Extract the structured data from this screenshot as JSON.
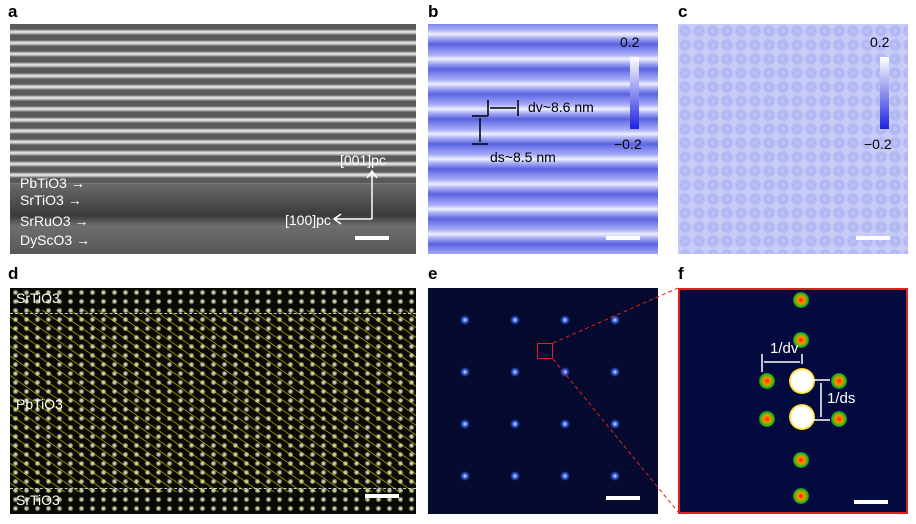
{
  "panels": {
    "a": {
      "label": "a",
      "layers": [
        "PbTiO3",
        "SrTiO3",
        "SrRuO3",
        "DyScO3"
      ],
      "axis_up": "[001]pc",
      "axis_right": "[100]pc"
    },
    "b": {
      "label": "b",
      "cbar_max": "0.2",
      "cbar_min": "−0.2",
      "dv": "dv~8.6 nm",
      "ds": "ds~8.5 nm"
    },
    "c": {
      "label": "c",
      "cbar_max": "0.2",
      "cbar_min": "−0.2"
    },
    "d": {
      "label": "d",
      "top": "SrTiO3",
      "middle": "PbTiO3",
      "bottom": "SrTiO3"
    },
    "e": {
      "label": "e"
    },
    "f": {
      "label": "f",
      "inv_dv": "1/dv",
      "inv_ds": "1/ds"
    }
  },
  "colors": {
    "highlight": "#e02020",
    "arrows": "#e6e600"
  }
}
